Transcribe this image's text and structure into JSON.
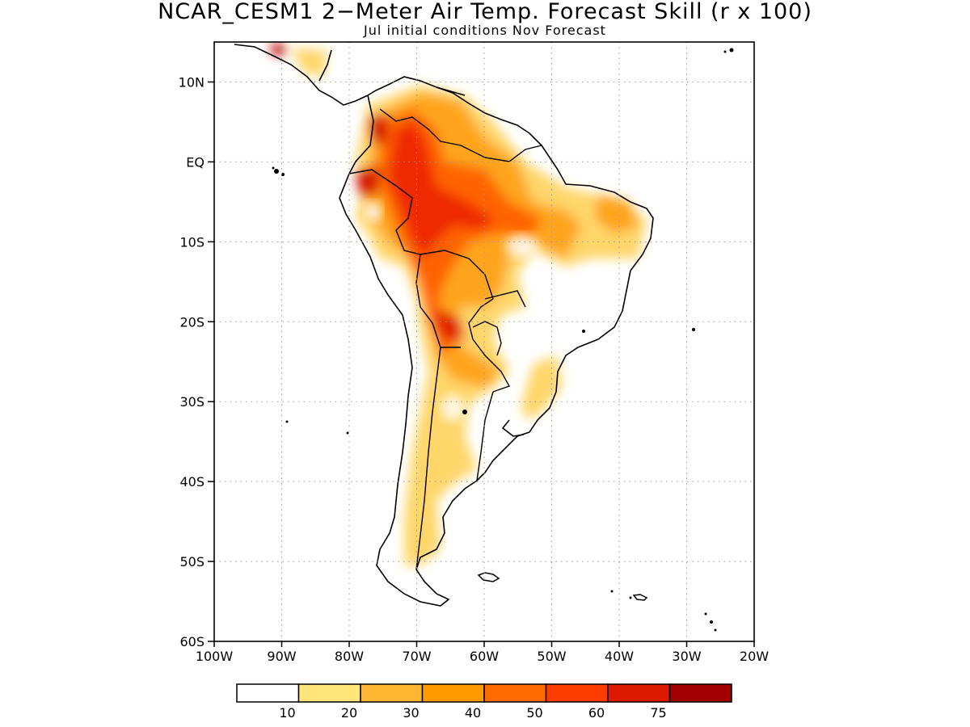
{
  "title": "NCAR_CESM1 2−Meter Air Temp. Forecast Skill (r x 100)",
  "subtitle": "Jul initial conditions  Nov Forecast",
  "map": {
    "lon_range": [
      -100,
      -20
    ],
    "lat_range": [
      -60,
      15
    ],
    "lat_ticks": [
      {
        "value": 10,
        "label": "10N"
      },
      {
        "value": 0,
        "label": "EQ"
      },
      {
        "value": -10,
        "label": "10S"
      },
      {
        "value": -20,
        "label": "20S"
      },
      {
        "value": -30,
        "label": "30S"
      },
      {
        "value": -40,
        "label": "40S"
      },
      {
        "value": -50,
        "label": "50S"
      },
      {
        "value": -60,
        "label": "60S"
      }
    ],
    "lon_ticks": [
      {
        "value": -100,
        "label": "100W"
      },
      {
        "value": -90,
        "label": "90W"
      },
      {
        "value": -80,
        "label": "80W"
      },
      {
        "value": -70,
        "label": "70W"
      },
      {
        "value": -60,
        "label": "60W"
      },
      {
        "value": -50,
        "label": "50W"
      },
      {
        "value": -40,
        "label": "40W"
      },
      {
        "value": -30,
        "label": "30W"
      },
      {
        "value": -20,
        "label": "20W"
      }
    ],
    "gridlines": "dotted"
  },
  "colorbar": {
    "colors": [
      "#ffffff",
      "#ffe57a",
      "#ffb733",
      "#ff9a00",
      "#ff6a00",
      "#ff3c00",
      "#dd1a00",
      "#a00000"
    ],
    "labels": [
      "10",
      "20",
      "30",
      "40",
      "50",
      "60",
      "75"
    ]
  }
}
